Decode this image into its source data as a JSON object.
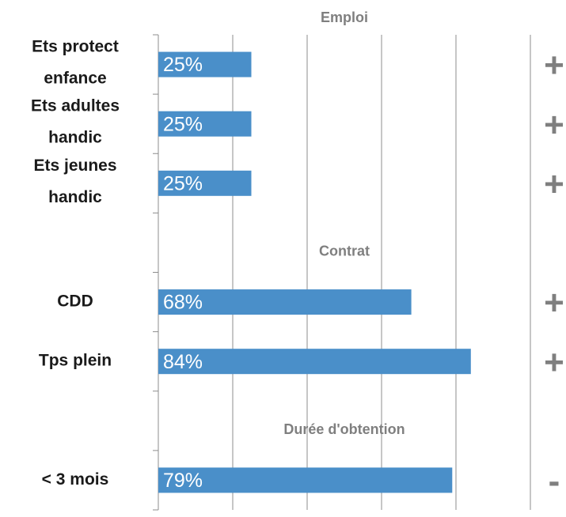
{
  "chart_data": {
    "type": "bar",
    "orientation": "horizontal",
    "color": "#4a8fc9",
    "xlim": [
      0,
      100
    ],
    "xticks": [
      0,
      20,
      40,
      60,
      80,
      100
    ],
    "grid": true,
    "sections": [
      {
        "title": "Emploi",
        "categories": [
          "Ets protect enfance",
          "Ets adultes handic",
          "Ets jeunes handic"
        ],
        "values": [
          25,
          25,
          25
        ],
        "value_labels": [
          "25%",
          "25%",
          "25%"
        ],
        "signs": [
          "+",
          "+",
          "+"
        ]
      },
      {
        "title": "Contrat",
        "categories": [
          "CDD",
          "Tps plein"
        ],
        "values": [
          68,
          84
        ],
        "value_labels": [
          "68%",
          "84%"
        ],
        "signs": [
          "+",
          "+"
        ]
      },
      {
        "title": "Durée d'obtention",
        "categories": [
          "< 3 mois"
        ],
        "values": [
          79
        ],
        "value_labels": [
          "79%"
        ],
        "signs": [
          "-"
        ]
      }
    ]
  }
}
